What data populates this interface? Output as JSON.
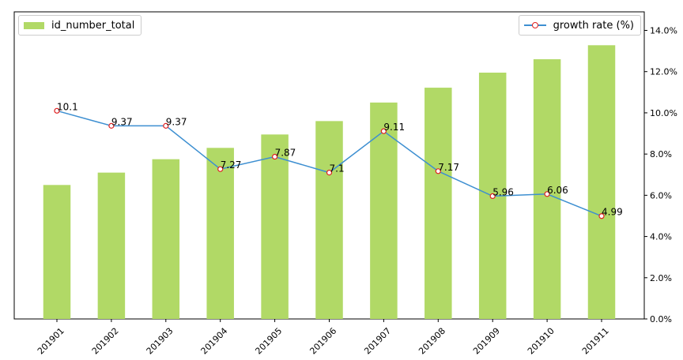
{
  "chart_data": {
    "type": "bar",
    "categories": [
      "201901",
      "201902",
      "201903",
      "201904",
      "201905",
      "201906",
      "201907",
      "201908",
      "201909",
      "201910",
      "201911"
    ],
    "series": [
      {
        "name": "id_number_total",
        "type": "bar",
        "axis": "left",
        "values": [
          6.5,
          7.1,
          7.75,
          8.3,
          8.95,
          9.6,
          10.5,
          11.22,
          11.95,
          12.6,
          13.28
        ]
      },
      {
        "name": "growth rate (%)",
        "type": "line",
        "axis": "right",
        "values": [
          10.1,
          9.37,
          9.37,
          7.27,
          7.87,
          7.1,
          9.11,
          7.17,
          5.96,
          6.06,
          4.99
        ],
        "data_labels": [
          "10.1",
          "9.37",
          "9.37",
          "7.27",
          "7.87",
          "7.1",
          "9.11",
          "7.17",
          "5.96",
          "6.06",
          "4.99"
        ]
      }
    ],
    "y_left": {
      "lim": [
        0,
        14.9
      ],
      "ticks_shown": false
    },
    "y_right": {
      "lim": [
        0,
        14.9
      ],
      "ticks": [
        0,
        2,
        4,
        6,
        8,
        10,
        12,
        14
      ],
      "tick_labels": [
        "0.0%",
        "2.0%",
        "4.0%",
        "6.0%",
        "8.0%",
        "10.0%",
        "12.0%",
        "14.0%"
      ]
    },
    "legend": [
      {
        "label": "id_number_total",
        "placement": "upper-left"
      },
      {
        "label": "growth rate (%)",
        "placement": "upper-right"
      }
    ],
    "grid": false,
    "colors": {
      "bar": "#b1d966",
      "line": "#3d8fd1",
      "marker_edge": "#e02020",
      "axis": "#000000"
    },
    "title": "",
    "xlabel": "",
    "ylabel": ""
  }
}
